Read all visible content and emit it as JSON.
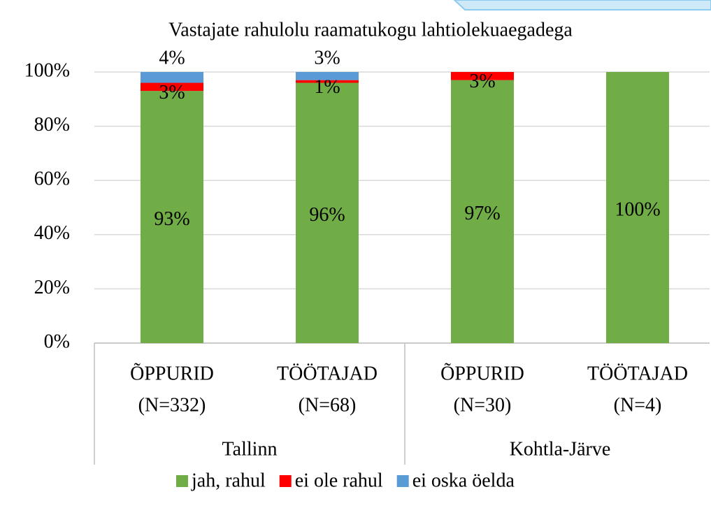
{
  "chart_data": {
    "type": "stacked_bar",
    "title": "Vastajate rahulolu raamatukogu lahtiolekuaegadega",
    "groups": [
      {
        "name": "Tallinn",
        "categories": [
          [
            "ÕPPURID",
            "(N=332)"
          ],
          [
            "TÖÖTAJAD",
            "(N=68)"
          ]
        ]
      },
      {
        "name": "Kohtla-Järve",
        "categories": [
          [
            "ÕPPURID",
            "(N=30)"
          ],
          [
            "TÖÖTAJAD",
            "(N=4)"
          ]
        ]
      }
    ],
    "series": [
      {
        "name": "jah, rahul",
        "color": "#70ad47",
        "values": [
          93,
          96,
          97,
          100
        ],
        "value_labels": [
          "93%",
          "96%",
          "97%",
          "100%"
        ]
      },
      {
        "name": "ei ole rahul",
        "color": "#ff0000",
        "values": [
          3,
          1,
          3,
          0
        ],
        "value_labels": [
          "3%",
          "1%",
          "3%",
          null
        ]
      },
      {
        "name": "ei oska öelda",
        "color": "#5b9bd5",
        "values": [
          4,
          3,
          0,
          0
        ],
        "value_labels": [
          "4%",
          "3%",
          null,
          null
        ]
      }
    ],
    "ylim": [
      0,
      100
    ],
    "yticks": [
      {
        "value": 0,
        "label": "0%"
      },
      {
        "value": 20,
        "label": "20%"
      },
      {
        "value": 40,
        "label": "40%"
      },
      {
        "value": 60,
        "label": "60%"
      },
      {
        "value": 80,
        "label": "80%"
      },
      {
        "value": 100,
        "label": "100%"
      }
    ],
    "grid": true,
    "legend": "bottom"
  }
}
